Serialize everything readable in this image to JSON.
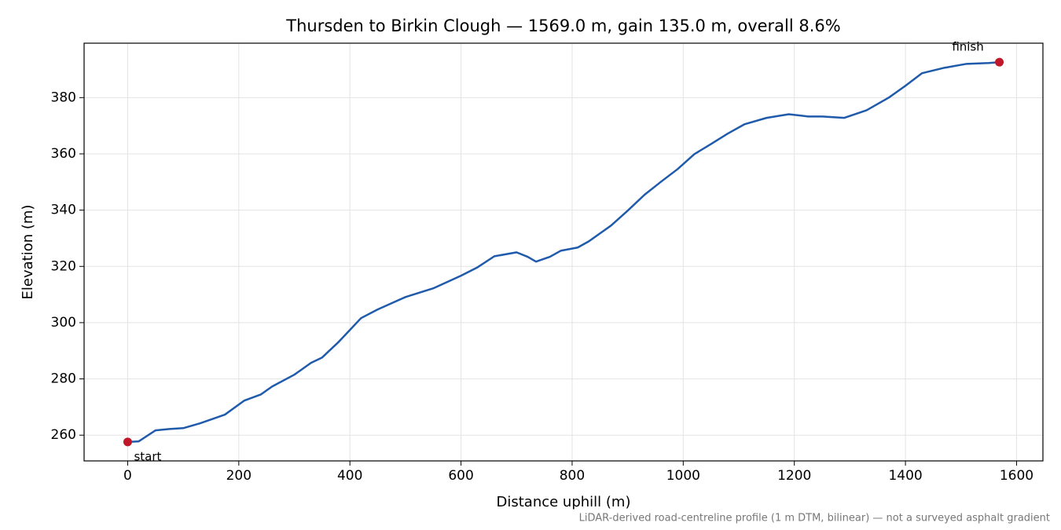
{
  "chart_data": {
    "type": "line",
    "title": "Thursden to Birkin Clough — 1569.0 m, gain 135.0 m, overall 8.6%",
    "xlabel": "Distance uphill (m)",
    "ylabel": "Elevation (m)",
    "footnote": "LiDAR-derived road-centreline profile (1 m DTM, bilinear) — not a surveyed asphalt gradient",
    "x": [
      0,
      20,
      50,
      75,
      100,
      130,
      175,
      210,
      240,
      260,
      300,
      330,
      350,
      380,
      400,
      420,
      450,
      500,
      550,
      600,
      630,
      660,
      700,
      720,
      735,
      760,
      780,
      810,
      830,
      870,
      900,
      930,
      960,
      990,
      1020,
      1050,
      1080,
      1110,
      1150,
      1190,
      1225,
      1250,
      1290,
      1330,
      1370,
      1400,
      1430,
      1470,
      1510,
      1550,
      1569
    ],
    "series": [
      {
        "color": "#1f5aab",
        "values": [
          257.6,
          257.8,
          261.7,
          262.2,
          262.5,
          264.2,
          267.3,
          272.3,
          274.5,
          277.3,
          281.5,
          285.7,
          287.6,
          293.2,
          297.4,
          301.6,
          304.7,
          309.1,
          312.2,
          316.7,
          319.7,
          323.6,
          325.0,
          323.4,
          321.7,
          323.4,
          325.6,
          326.7,
          328.9,
          334.5,
          339.8,
          345.4,
          350.1,
          354.6,
          359.9,
          363.5,
          367.2,
          370.5,
          372.8,
          374.1,
          373.3,
          373.3,
          372.8,
          375.5,
          380.0,
          384.2,
          388.7,
          390.6,
          392.0,
          392.3,
          392.6
        ]
      }
    ],
    "marker_color": "#c0182a",
    "annotations": [
      {
        "text": "start"
      },
      {
        "text": "finish"
      }
    ],
    "xlim": [
      -78.45,
      1647.45
    ],
    "ylim": [
      250.85,
      399.35
    ],
    "xticks": [
      0,
      200,
      400,
      600,
      800,
      1000,
      1200,
      1400,
      1600
    ],
    "yticks": [
      260,
      280,
      300,
      320,
      340,
      360,
      380
    ],
    "grid": true
  }
}
